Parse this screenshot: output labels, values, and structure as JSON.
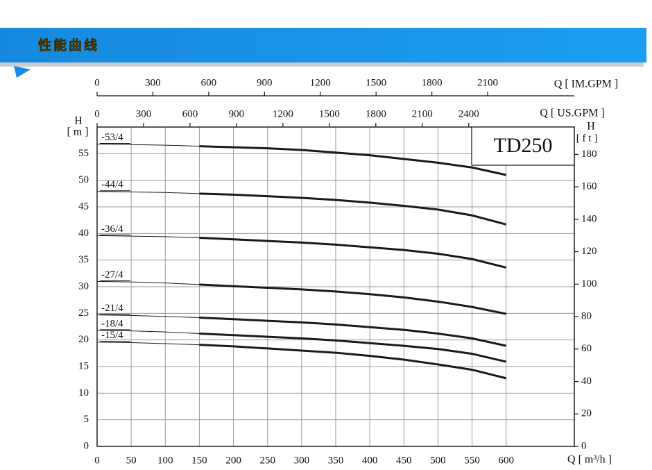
{
  "header": {
    "title": "性能曲线"
  },
  "chart_data": {
    "type": "line",
    "title": "TD250",
    "x_label": "Q [ m³/h ]",
    "y_label": "H",
    "y_unit": "[ m ]",
    "y2_label": "H",
    "y2_unit": "[ f t ]",
    "x": [
      0,
      50,
      100,
      150,
      200,
      250,
      300,
      350,
      400,
      450,
      500,
      550,
      600
    ],
    "xlim": [
      0,
      700
    ],
    "xticks": [
      0,
      50,
      100,
      150,
      200,
      250,
      300,
      350,
      400,
      450,
      500,
      550,
      600
    ],
    "ylim": [
      0,
      60
    ],
    "yticks": [
      0,
      5,
      10,
      15,
      20,
      25,
      30,
      35,
      40,
      45,
      50,
      55
    ],
    "y2lim": [
      0,
      196.85
    ],
    "y2ticks": [
      0,
      20,
      40,
      60,
      80,
      100,
      120,
      140,
      160,
      180
    ],
    "x2_label": "Q [ IM.GPM ]",
    "x2lim": [
      0,
      2566
    ],
    "x2ticks": [
      0,
      300,
      600,
      900,
      1200,
      1500,
      1800,
      2100
    ],
    "x3_label": "Q [ US.GPM ]",
    "x3lim": [
      0,
      3082
    ],
    "x3ticks": [
      0,
      300,
      600,
      900,
      1200,
      1500,
      1800,
      2100,
      2400
    ],
    "grid": true,
    "series": [
      {
        "name": "-53/4",
        "color": "#1a1a1a",
        "values": [
          56.8,
          56.7,
          56.6,
          56.4,
          56.2,
          56.0,
          55.7,
          55.2,
          54.7,
          54.0,
          53.3,
          52.4,
          51.0
        ]
      },
      {
        "name": "-44/4",
        "color": "#1a1a1a",
        "values": [
          47.9,
          47.8,
          47.7,
          47.5,
          47.3,
          47.0,
          46.7,
          46.3,
          45.8,
          45.2,
          44.5,
          43.4,
          41.7
        ]
      },
      {
        "name": "-36/4",
        "color": "#1a1a1a",
        "values": [
          39.6,
          39.5,
          39.4,
          39.2,
          38.9,
          38.6,
          38.3,
          37.9,
          37.4,
          36.9,
          36.2,
          35.2,
          33.6
        ]
      },
      {
        "name": "-27/4",
        "color": "#1a1a1a",
        "values": [
          31.0,
          30.9,
          30.7,
          30.4,
          30.1,
          29.8,
          29.5,
          29.1,
          28.6,
          28.0,
          27.2,
          26.2,
          24.9
        ]
      },
      {
        "name": "-21/4",
        "color": "#1a1a1a",
        "values": [
          24.7,
          24.6,
          24.4,
          24.2,
          23.9,
          23.6,
          23.3,
          22.9,
          22.4,
          21.9,
          21.2,
          20.3,
          18.9
        ]
      },
      {
        "name": "-18/4",
        "color": "#1a1a1a",
        "values": [
          21.8,
          21.7,
          21.5,
          21.2,
          20.9,
          20.6,
          20.3,
          19.9,
          19.4,
          18.9,
          18.3,
          17.4,
          15.9
        ]
      },
      {
        "name": "-15/4",
        "color": "#1a1a1a",
        "values": [
          19.6,
          19.5,
          19.3,
          19.1,
          18.8,
          18.4,
          18.0,
          17.6,
          17.0,
          16.3,
          15.4,
          14.4,
          12.8
        ]
      }
    ]
  }
}
